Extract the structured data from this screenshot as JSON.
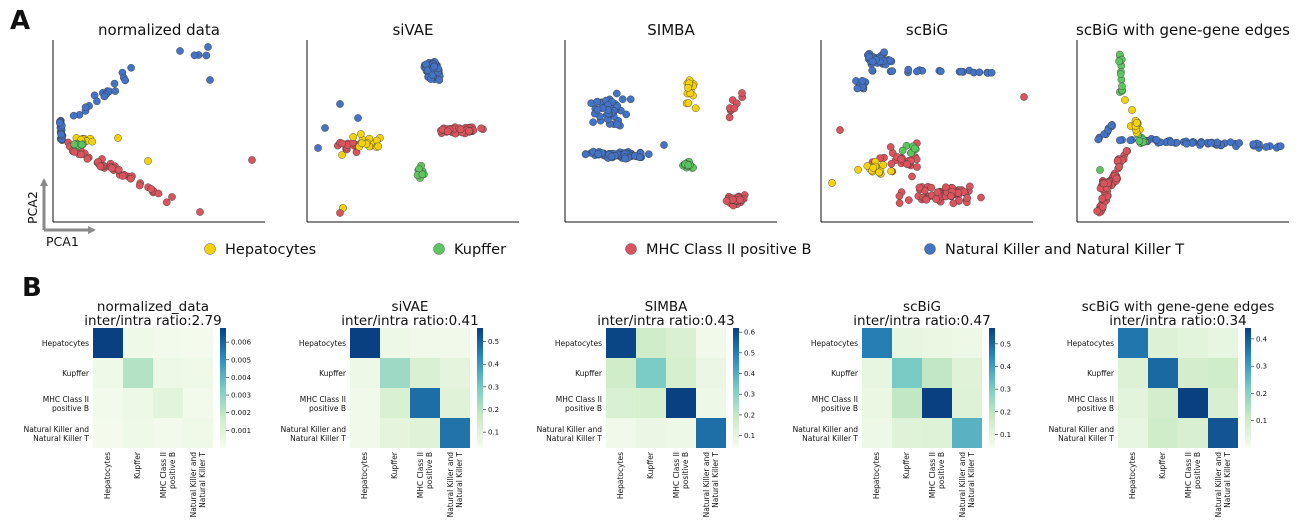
{
  "panel_a_label": "A",
  "panel_b_label": "B",
  "axis_labels": {
    "y": "PCA2",
    "x": "PCA1"
  },
  "legend": [
    {
      "label": "Hepatocytes",
      "color": "#f5d10a"
    },
    {
      "label": "Kupffer",
      "color": "#5dc560"
    },
    {
      "label": "MHC Class II positive B",
      "color": "#d9545c"
    },
    {
      "label": "Natural Killer and Natural Killer T",
      "color": "#4472c4"
    }
  ],
  "chart_data": [
    {
      "type": "scatter",
      "title": "normalized data"
    },
    {
      "type": "scatter",
      "title": "siVAE"
    },
    {
      "type": "scatter",
      "title": "SIMBA"
    },
    {
      "type": "scatter",
      "title": "scBiG"
    },
    {
      "type": "scatter",
      "title": "scBiG with gene-gene edges"
    },
    {
      "type": "heatmap",
      "title": "normalized_data",
      "subtitle": "inter/intra ratio:2.79",
      "rows": [
        "Hepatocytes",
        "Kupffer",
        "MHC Class II positive B",
        "Natural Killer and Natural Killer T"
      ],
      "cols": [
        "Hepatocytes",
        "Kupffer",
        "MHC Class II positive B",
        "Natural Killer and Natural Killer T"
      ],
      "values": [
        [
          0.0068,
          0.0003,
          0.0002,
          0.0001
        ],
        [
          0.0003,
          0.0022,
          0.0004,
          0.0003
        ],
        [
          0.0002,
          0.0004,
          0.0008,
          0.0002
        ],
        [
          0.0001,
          0.0003,
          0.0002,
          0.0003
        ]
      ],
      "colorbar_ticks": [
        "0.006",
        "0.005",
        "0.004",
        "0.003",
        "0.002",
        "0.001"
      ],
      "vmin": 0.0,
      "vmax": 0.0068
    },
    {
      "type": "heatmap",
      "title": "siVAE",
      "subtitle": "inter/intra ratio:0.41",
      "rows": [
        "Hepatocytes",
        "Kupffer",
        "MHC Class II positive B",
        "Natural Killer and Natural Killer T"
      ],
      "cols": [
        "Hepatocytes",
        "Kupffer",
        "MHC Class II positive B",
        "Natural Killer and Natural Killer T"
      ],
      "values": [
        [
          0.56,
          0.06,
          0.05,
          0.05
        ],
        [
          0.06,
          0.24,
          0.12,
          0.09
        ],
        [
          0.05,
          0.12,
          0.48,
          0.1
        ],
        [
          0.05,
          0.09,
          0.1,
          0.47
        ]
      ],
      "colorbar_ticks": [
        "0.5",
        "0.4",
        "0.3",
        "0.2",
        "0.1"
      ],
      "vmin": 0.03,
      "vmax": 0.56
    },
    {
      "type": "heatmap",
      "title": "SIMBA",
      "subtitle": "inter/intra ratio:0.43",
      "rows": [
        "Hepatocytes",
        "Kupffer",
        "MHC Class II positive B",
        "Natural Killer and Natural Killer T"
      ],
      "cols": [
        "Hepatocytes",
        "Kupffer",
        "MHC Class II positive B",
        "Natural Killer and Natural Killer T"
      ],
      "values": [
        [
          0.61,
          0.17,
          0.14,
          0.06
        ],
        [
          0.17,
          0.33,
          0.15,
          0.08
        ],
        [
          0.14,
          0.15,
          0.62,
          0.07
        ],
        [
          0.06,
          0.08,
          0.07,
          0.53
        ]
      ],
      "colorbar_ticks": [
        "0.6",
        "0.5",
        "0.4",
        "0.3",
        "0.2",
        "0.1"
      ],
      "vmin": 0.04,
      "vmax": 0.62
    },
    {
      "type": "heatmap",
      "title": "scBiG",
      "subtitle": "inter/intra ratio:0.47",
      "rows": [
        "Hepatocytes",
        "Kupffer",
        "MHC Class II positive B",
        "Natural Killer and Natural Killer T"
      ],
      "cols": [
        "Hepatocytes",
        "Kupffer",
        "MHC Class II positive B",
        "Natural Killer and Natural Killer T"
      ],
      "values": [
        [
          0.46,
          0.09,
          0.08,
          0.07
        ],
        [
          0.09,
          0.31,
          0.19,
          0.11
        ],
        [
          0.08,
          0.19,
          0.57,
          0.12
        ],
        [
          0.07,
          0.11,
          0.12,
          0.36
        ]
      ],
      "colorbar_ticks": [
        "0.5",
        "0.4",
        "0.3",
        "0.2",
        "0.1"
      ],
      "vmin": 0.04,
      "vmax": 0.57
    },
    {
      "type": "heatmap",
      "title": "scBiG with gene-gene edges",
      "subtitle": "inter/intra ratio:0.34",
      "rows": [
        "Hepatocytes",
        "Kupffer",
        "MHC Class II positive B",
        "Natural Killer and Natural Killer T"
      ],
      "cols": [
        "Hepatocytes",
        "Kupffer",
        "MHC Class II positive B",
        "Natural Killer and Natural Killer T"
      ],
      "values": [
        [
          0.36,
          0.07,
          0.05,
          0.04
        ],
        [
          0.07,
          0.38,
          0.09,
          0.1
        ],
        [
          0.05,
          0.09,
          0.44,
          0.08
        ],
        [
          0.04,
          0.1,
          0.08,
          0.41
        ]
      ],
      "colorbar_ticks": [
        "0.4",
        "0.3",
        "0.2",
        "0.1"
      ],
      "vmin": 0.0,
      "vmax": 0.44
    }
  ]
}
